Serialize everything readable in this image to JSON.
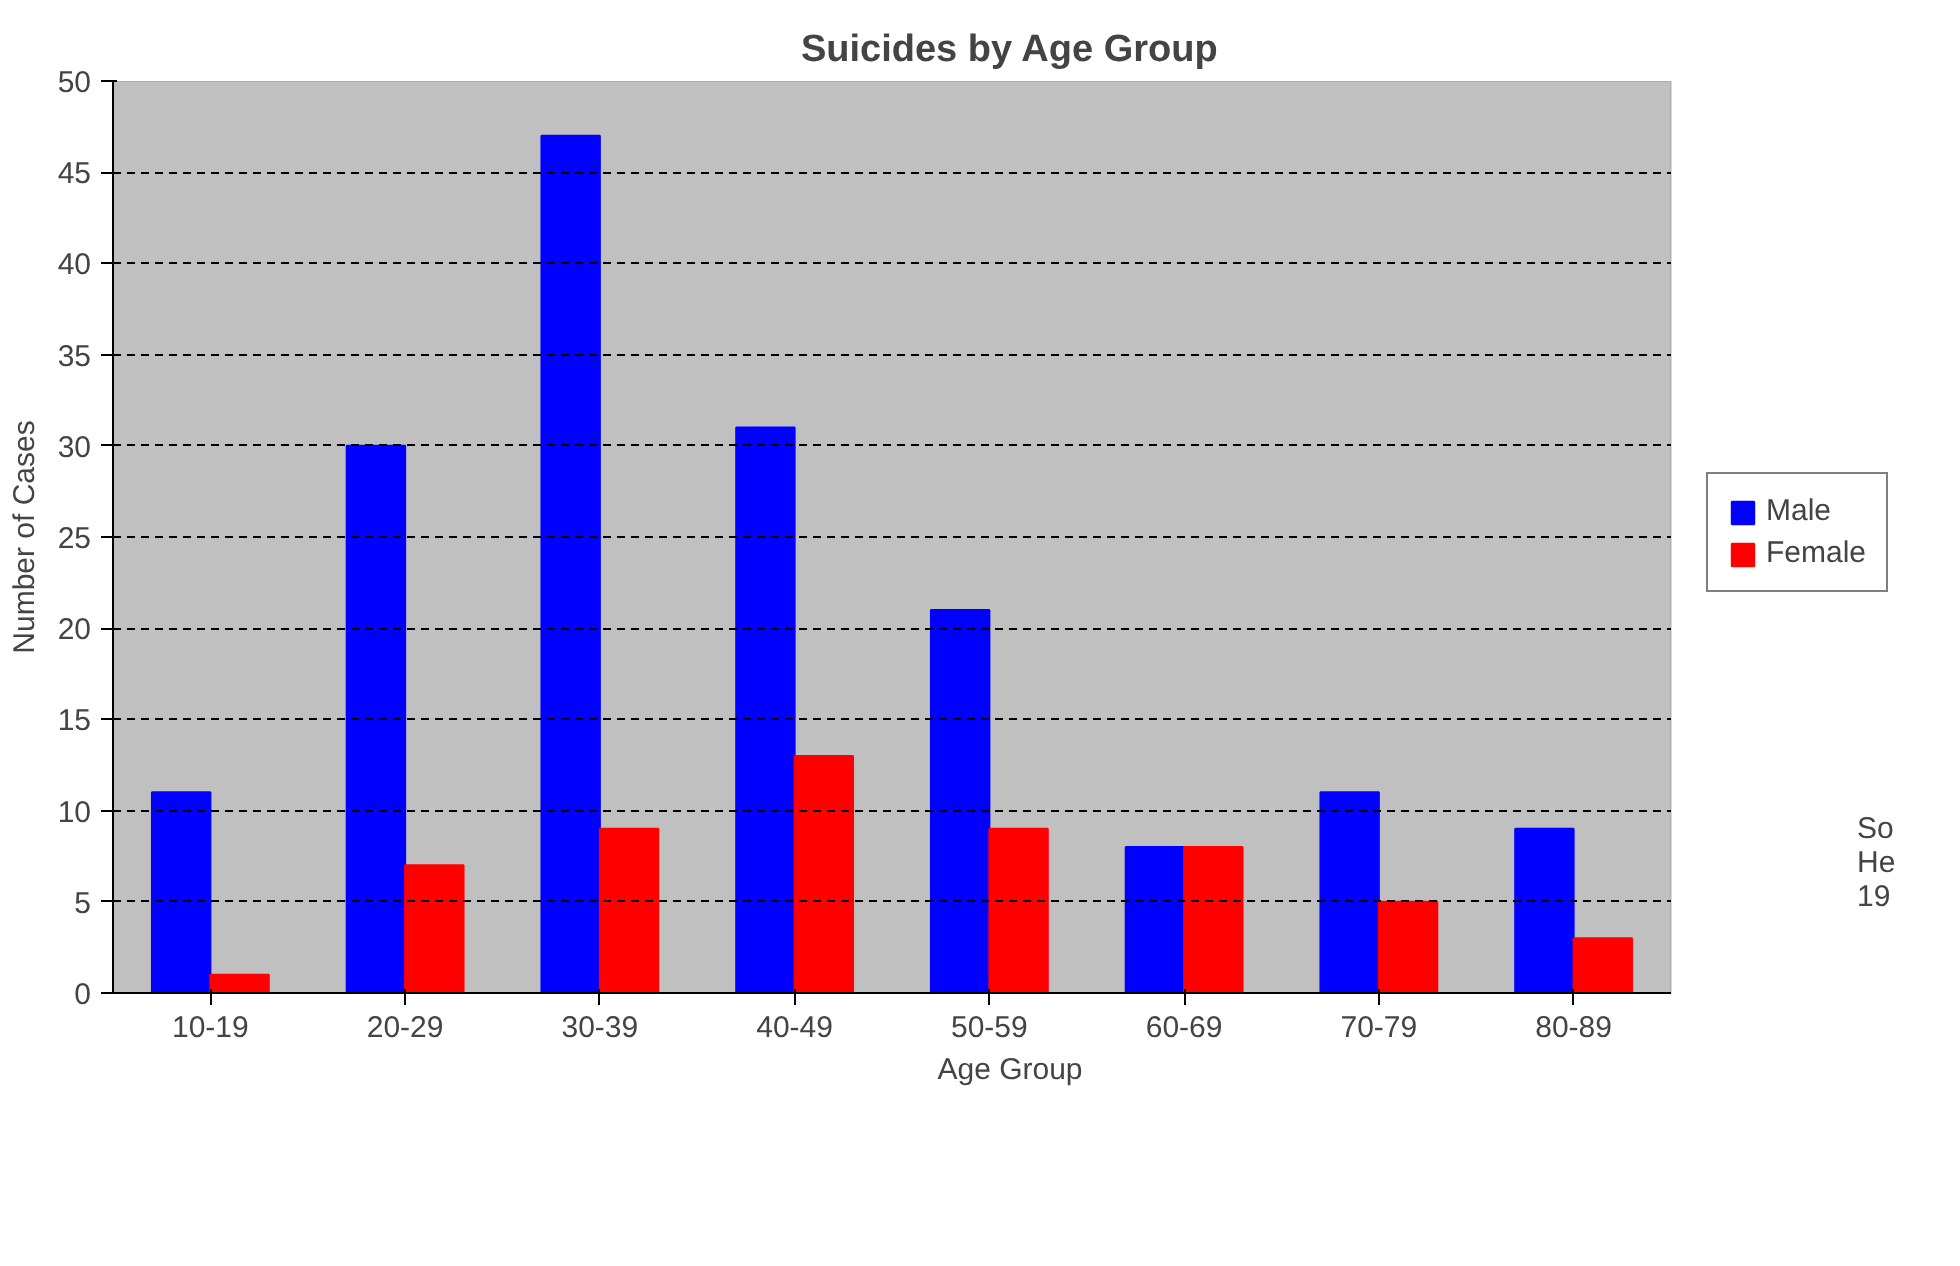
{
  "chart_data": {
    "type": "bar",
    "title": "Suicides by Age Group",
    "xlabel": "Age Group",
    "ylabel": "Number of Cases",
    "categories": [
      "10-19",
      "20-29",
      "30-39",
      "40-49",
      "50-59",
      "60-69",
      "70-79",
      "80-89"
    ],
    "series": [
      {
        "name": "Male",
        "color": "#0000ff",
        "values": [
          11,
          30,
          47,
          31,
          21,
          8,
          11,
          9
        ]
      },
      {
        "name": "Female",
        "color": "#ff0000",
        "values": [
          1,
          7,
          9,
          13,
          9,
          8,
          5,
          3
        ]
      }
    ],
    "ylim": [
      0,
      50
    ],
    "yticks": [
      0,
      5,
      10,
      15,
      20,
      25,
      30,
      35,
      40,
      45,
      50
    ],
    "grid": "y",
    "legend": "right",
    "annotations": [
      "So\nHe\n19"
    ]
  }
}
